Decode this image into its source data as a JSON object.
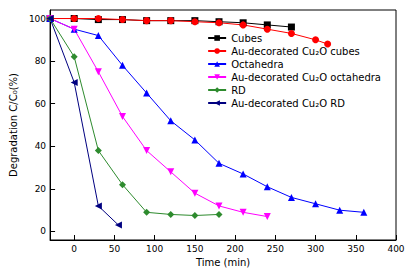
{
  "chart_data": {
    "type": "line",
    "x_label": "Time (min)",
    "y_label": "Degradation C/C₀(%)",
    "xlim": [
      -30,
      400
    ],
    "xticks": [
      0,
      50,
      100,
      150,
      200,
      250,
      300,
      350,
      400
    ],
    "ylim": [
      -4,
      104
    ],
    "yticks": [
      0,
      20,
      40,
      60,
      80,
      100
    ],
    "grid": false,
    "legend": "upper right",
    "series": [
      {
        "name": "Cubes",
        "color": "#000000",
        "marker": "square",
        "x": [
          -30,
          0,
          30,
          60,
          90,
          120,
          150,
          180,
          210,
          240,
          270
        ],
        "values": [
          100,
          100,
          99.5,
          99.5,
          99,
          99,
          99,
          98.5,
          98,
          97,
          96
        ]
      },
      {
        "name": "Au-decorated Cu₂O cubes",
        "color": "#ff0000",
        "marker": "circle",
        "x": [
          -30,
          0,
          30,
          60,
          90,
          120,
          150,
          180,
          210,
          240,
          270,
          300,
          315
        ],
        "values": [
          100,
          100,
          100,
          99.5,
          99,
          99,
          98.5,
          98,
          97,
          95,
          93,
          90,
          88
        ]
      },
      {
        "name": "Octahedra",
        "color": "#0000ff",
        "marker": "triangle-up",
        "x": [
          -30,
          0,
          30,
          60,
          90,
          120,
          150,
          180,
          210,
          240,
          270,
          300,
          330,
          360
        ],
        "values": [
          100,
          95,
          92,
          78,
          65,
          52,
          43,
          32,
          27,
          21,
          16,
          13,
          10,
          9
        ]
      },
      {
        "name": "Au-decorated Cu₂O octahedra",
        "color": "#ff00ff",
        "marker": "triangle-down",
        "x": [
          -30,
          0,
          30,
          60,
          90,
          120,
          150,
          180,
          210,
          240
        ],
        "values": [
          100,
          95,
          75,
          54,
          38,
          28,
          18,
          12,
          9,
          7
        ]
      },
      {
        "name": "RD",
        "color": "#2e8b2e",
        "marker": "diamond",
        "x": [
          -30,
          0,
          30,
          60,
          90,
          120,
          150,
          180
        ],
        "values": [
          100,
          82,
          38,
          22,
          9,
          8,
          7.5,
          8
        ]
      },
      {
        "name": "Au-decorated Cu₂O RD",
        "color": "#000080",
        "marker": "triangle-left",
        "x": [
          -30,
          0,
          30,
          55
        ],
        "values": [
          100,
          70,
          12,
          3
        ]
      }
    ]
  }
}
